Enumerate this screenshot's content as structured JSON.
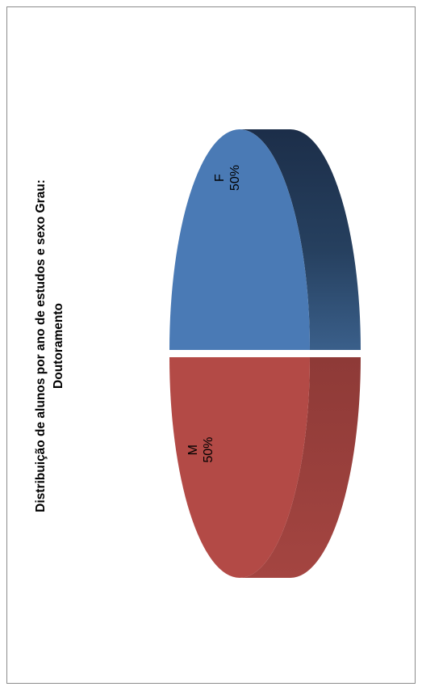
{
  "chart_data": {
    "type": "pie",
    "title_line1": "Distribuição de alunos por ano de estudos e sexo Grau:",
    "title_line2": "Doutoramento",
    "exploded": true,
    "three_d": true,
    "slices": [
      {
        "name": "F",
        "percent_label": "50%",
        "value": 50,
        "color": "#4a7ab5",
        "side_color": "#223a5a"
      },
      {
        "name": "M",
        "percent_label": "50%",
        "value": 50,
        "color": "#b34a46",
        "side_color": "#8a3634"
      }
    ]
  }
}
